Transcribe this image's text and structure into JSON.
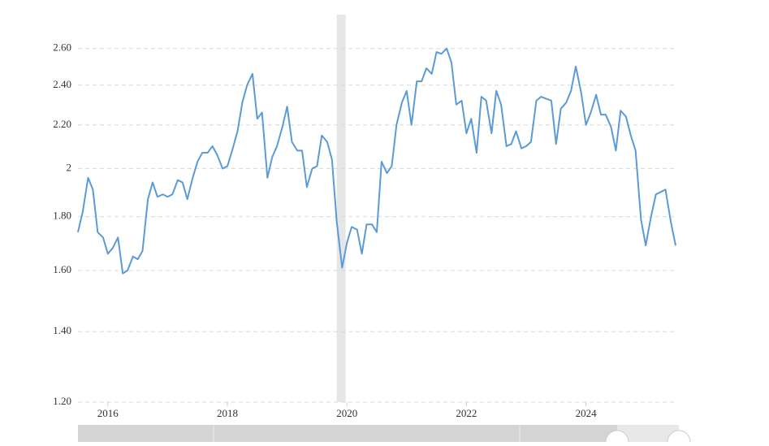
{
  "chart_data": {
    "type": "line",
    "log_y": true,
    "grid": true,
    "xlim": [
      2015.5,
      2025.5
    ],
    "ylim": [
      1.2,
      2.8
    ],
    "xticks": [
      2016,
      2018,
      2020,
      2022,
      2024
    ],
    "yticks": [
      {
        "value": 1.2,
        "label": "1.20"
      },
      {
        "value": 1.4,
        "label": "1.40"
      },
      {
        "value": 1.6,
        "label": "1.60"
      },
      {
        "value": 1.8,
        "label": "1.80"
      },
      2,
      {
        "value": 2.2,
        "label": "2.20"
      },
      {
        "value": 2.4,
        "label": "2.40"
      },
      {
        "value": 2.6,
        "label": "2.60"
      }
    ],
    "shaded_regions": [
      {
        "start": 2019.83,
        "end": 2019.98,
        "color": "#e6e6e6"
      }
    ],
    "x": [
      2015.5,
      2015.58,
      2015.67,
      2015.75,
      2015.83,
      2015.92,
      2016.0,
      2016.08,
      2016.17,
      2016.25,
      2016.33,
      2016.42,
      2016.5,
      2016.58,
      2016.67,
      2016.75,
      2016.83,
      2016.92,
      2017.0,
      2017.08,
      2017.17,
      2017.25,
      2017.33,
      2017.42,
      2017.5,
      2017.58,
      2017.67,
      2017.75,
      2017.83,
      2017.92,
      2018.0,
      2018.08,
      2018.17,
      2018.25,
      2018.33,
      2018.42,
      2018.5,
      2018.58,
      2018.67,
      2018.75,
      2018.83,
      2018.92,
      2019.0,
      2019.08,
      2019.17,
      2019.25,
      2019.33,
      2019.42,
      2019.5,
      2019.58,
      2019.67,
      2019.75,
      2019.83,
      2019.92,
      2020.0,
      2020.08,
      2020.17,
      2020.25,
      2020.33,
      2020.42,
      2020.5,
      2020.58,
      2020.67,
      2020.75,
      2020.83,
      2020.92,
      2021.0,
      2021.08,
      2021.17,
      2021.25,
      2021.33,
      2021.42,
      2021.5,
      2021.58,
      2021.67,
      2021.75,
      2021.83,
      2021.92,
      2022.0,
      2022.08,
      2022.17,
      2022.25,
      2022.33,
      2022.42,
      2022.5,
      2022.58,
      2022.67,
      2022.75,
      2022.83,
      2022.92,
      2023.0,
      2023.08,
      2023.17,
      2023.25,
      2023.33,
      2023.42,
      2023.5,
      2023.58,
      2023.67,
      2023.75,
      2023.83,
      2023.92,
      2024.0,
      2024.08,
      2024.17,
      2024.25,
      2024.33,
      2024.42,
      2024.5,
      2024.58,
      2024.67,
      2024.75,
      2024.83,
      2024.92,
      2025.0,
      2025.08,
      2025.17,
      2025.25,
      2025.33,
      2025.42,
      2025.5
    ],
    "series": [
      {
        "color": "#5b9bd5",
        "values": [
          1.74,
          1.82,
          1.96,
          1.91,
          1.74,
          1.72,
          1.66,
          1.68,
          1.72,
          1.59,
          1.6,
          1.65,
          1.64,
          1.67,
          1.87,
          1.94,
          1.88,
          1.89,
          1.88,
          1.89,
          1.95,
          1.94,
          1.87,
          1.96,
          2.03,
          2.07,
          2.07,
          2.1,
          2.06,
          2.0,
          2.01,
          2.08,
          2.17,
          2.31,
          2.4,
          2.46,
          2.23,
          2.26,
          1.96,
          2.05,
          2.1,
          2.19,
          2.29,
          2.12,
          2.08,
          2.08,
          1.92,
          2.0,
          2.01,
          2.15,
          2.12,
          2.04,
          1.78,
          1.61,
          1.7,
          1.76,
          1.75,
          1.66,
          1.77,
          1.77,
          1.74,
          2.03,
          1.98,
          2.01,
          2.2,
          2.31,
          2.37,
          2.2,
          2.42,
          2.42,
          2.49,
          2.46,
          2.58,
          2.57,
          2.6,
          2.52,
          2.3,
          2.32,
          2.16,
          2.23,
          2.07,
          2.34,
          2.32,
          2.16,
          2.37,
          2.3,
          2.1,
          2.11,
          2.17,
          2.09,
          2.1,
          2.12,
          2.32,
          2.34,
          2.33,
          2.32,
          2.11,
          2.28,
          2.31,
          2.37,
          2.5,
          2.36,
          2.2,
          2.26,
          2.35,
          2.25,
          2.25,
          2.19,
          2.08,
          2.27,
          2.24,
          2.15,
          2.08,
          1.79,
          1.69,
          1.79,
          1.89,
          1.9,
          1.91,
          1.78,
          1.69
        ]
      }
    ]
  }
}
